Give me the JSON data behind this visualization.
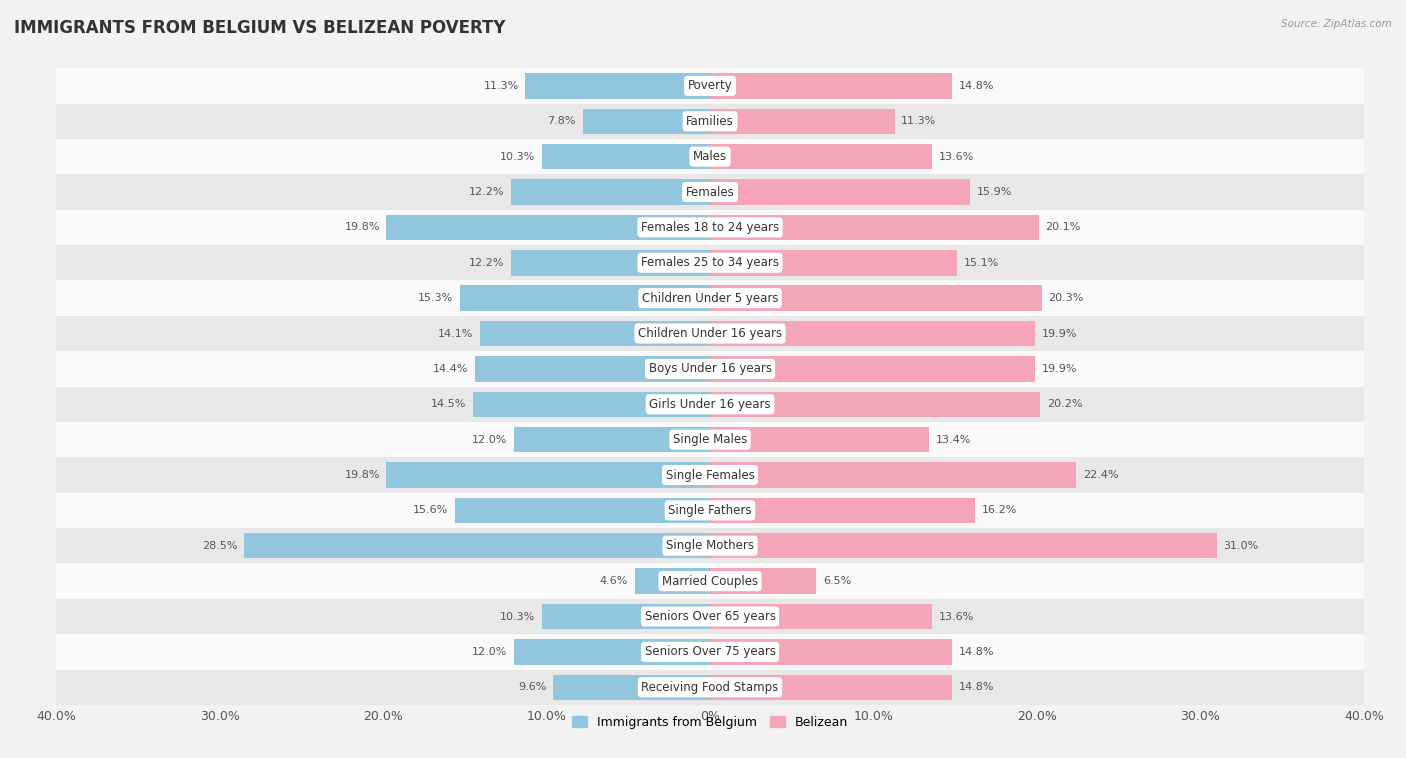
{
  "title": "IMMIGRANTS FROM BELGIUM VS BELIZEAN POVERTY",
  "source": "Source: ZipAtlas.com",
  "categories": [
    "Poverty",
    "Families",
    "Males",
    "Females",
    "Females 18 to 24 years",
    "Females 25 to 34 years",
    "Children Under 5 years",
    "Children Under 16 years",
    "Boys Under 16 years",
    "Girls Under 16 years",
    "Single Males",
    "Single Females",
    "Single Fathers",
    "Single Mothers",
    "Married Couples",
    "Seniors Over 65 years",
    "Seniors Over 75 years",
    "Receiving Food Stamps"
  ],
  "belgium_values": [
    11.3,
    7.8,
    10.3,
    12.2,
    19.8,
    12.2,
    15.3,
    14.1,
    14.4,
    14.5,
    12.0,
    19.8,
    15.6,
    28.5,
    4.6,
    10.3,
    12.0,
    9.6
  ],
  "belizean_values": [
    14.8,
    11.3,
    13.6,
    15.9,
    20.1,
    15.1,
    20.3,
    19.9,
    19.9,
    20.2,
    13.4,
    22.4,
    16.2,
    31.0,
    6.5,
    13.6,
    14.8,
    14.8
  ],
  "belgium_color": "#92c5de",
  "belizean_color": "#f4a6b8",
  "belgium_label": "Immigrants from Belgium",
  "belizean_label": "Belizean",
  "axis_limit": 40.0,
  "bg_color": "#f2f2f2",
  "row_color_light": "#fafafa",
  "row_color_dark": "#e8e8e8",
  "bar_height": 0.72,
  "title_fontsize": 12,
  "label_fontsize": 8.5,
  "value_fontsize": 8.0,
  "axis_label_fontsize": 9
}
